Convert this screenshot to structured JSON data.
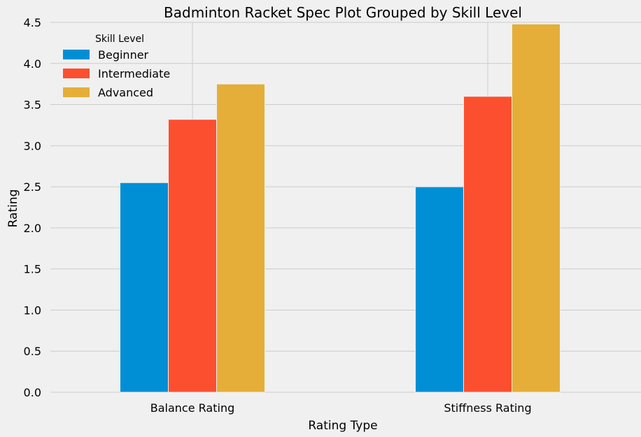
{
  "chart_data": {
    "type": "bar",
    "title": "Badminton Racket Spec Plot Grouped by Skill Level",
    "xlabel": "Rating Type",
    "ylabel": "Rating",
    "categories": [
      "Balance Rating",
      "Stiffness Rating"
    ],
    "series": [
      {
        "name": "Beginner",
        "values": [
          2.55,
          2.5
        ],
        "color": "#008fd5"
      },
      {
        "name": "Intermediate",
        "values": [
          3.32,
          3.6
        ],
        "color": "#fc4f30"
      },
      {
        "name": "Advanced",
        "values": [
          3.75,
          4.48
        ],
        "color": "#e5ae38"
      }
    ],
    "ylim": [
      0,
      4.5
    ],
    "yticks": [
      "0.0",
      "0.5",
      "1.0",
      "1.5",
      "2.0",
      "2.5",
      "3.0",
      "3.5",
      "4.0",
      "4.5"
    ],
    "grid": true,
    "legend": {
      "title": "Skill Level",
      "placement": "top-left"
    }
  }
}
